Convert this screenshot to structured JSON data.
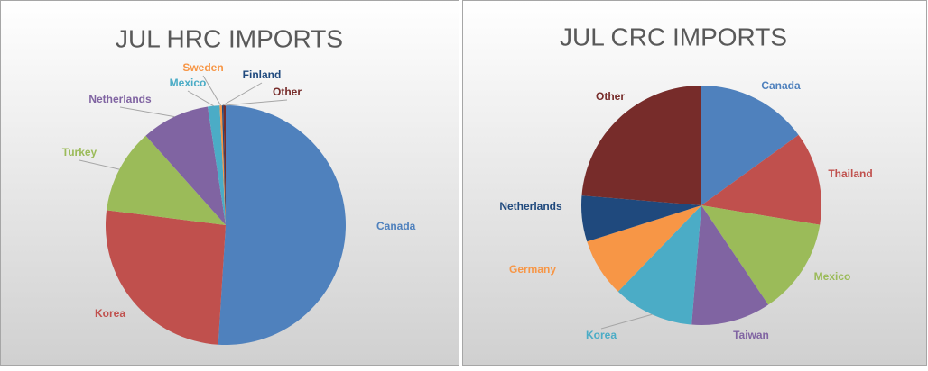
{
  "chart_data": [
    {
      "type": "pie",
      "title": "JUL HRC IMPORTS",
      "categories": [
        "Canada",
        "Korea",
        "Turkey",
        "Netherlands",
        "Mexico",
        "Sweden",
        "Finland",
        "Other"
      ],
      "values": [
        51,
        26,
        11.4,
        9.2,
        1.6,
        0.3,
        0.2,
        0.3
      ],
      "colors": [
        "#4f81bd",
        "#c0504d",
        "#9bbb59",
        "#8064a2",
        "#4bacc6",
        "#f79646",
        "#1f497d",
        "#772c2a"
      ]
    },
    {
      "type": "pie",
      "title": "JUL CRC IMPORTS",
      "categories": [
        "Canada",
        "Thailand",
        "Mexico",
        "Taiwan",
        "Korea",
        "Germany",
        "Netherlands",
        "Other"
      ],
      "values": [
        15,
        12.6,
        13,
        10.7,
        10.9,
        7.9,
        6.2,
        23.7
      ],
      "colors": [
        "#4f81bd",
        "#c0504d",
        "#9bbb59",
        "#8064a2",
        "#4bacc6",
        "#f79646",
        "#1f497d",
        "#772c2a"
      ]
    }
  ]
}
